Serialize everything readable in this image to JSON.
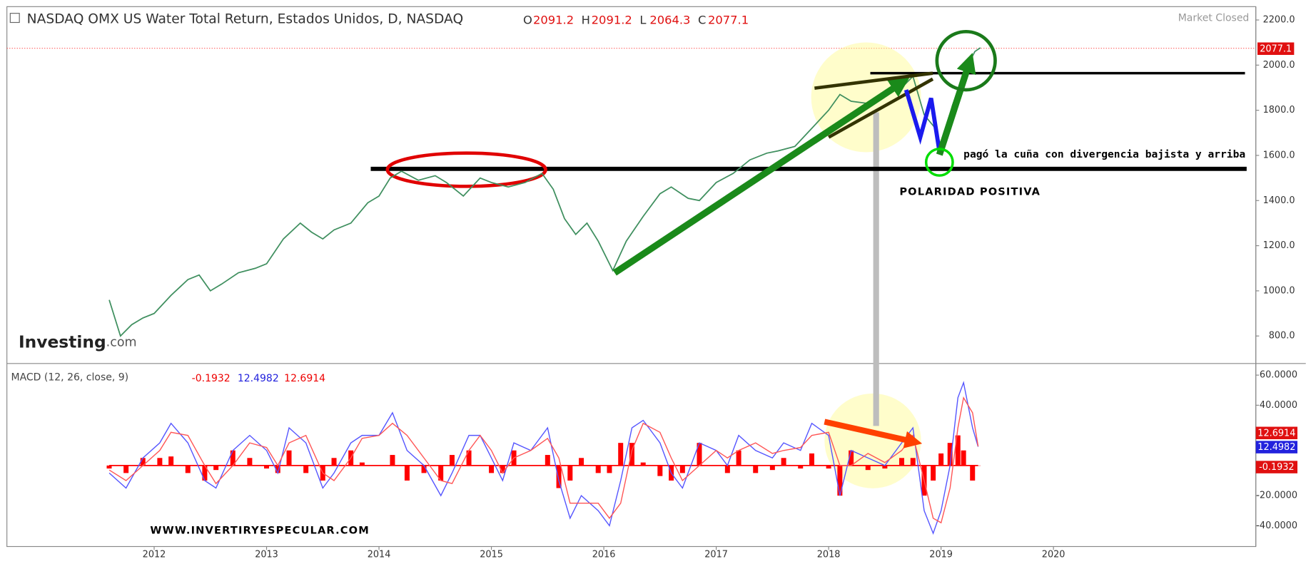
{
  "chart_data": {
    "type": "line",
    "title": "NASDAQ OMX US Water Total Return, Estados Unidos, D, NASDAQ",
    "ohlc": [
      {
        "label": "O",
        "value": 2091.2
      },
      {
        "label": "H",
        "value": 2091.2
      },
      {
        "label": "L",
        "value": 2064.3
      },
      {
        "label": "C",
        "value": 2077.1
      }
    ],
    "status": "Market Closed",
    "logo": {
      "main": "Investing",
      "suffix": ".com"
    },
    "watermark": "WWW.INVERTIRYESPECULAR.COM",
    "annotations": [
      "pagó la cuña con divergencia bajista y arriba",
      "POLARIDAD POSITIVA"
    ],
    "xlim": [
      2010.69,
      2021.8
    ],
    "xticks": [
      2012,
      2013,
      2014,
      2015,
      2016,
      2017,
      2018,
      2019,
      2020
    ],
    "ylim": [
      678,
      2259
    ],
    "yticks": [
      {
        "value": 800,
        "label": "800.0"
      },
      {
        "value": 1000,
        "label": "1000.0"
      },
      {
        "value": 1200,
        "label": "1200.0"
      },
      {
        "value": 1400,
        "label": "1400.0"
      },
      {
        "value": 1600,
        "label": "1600.0"
      },
      {
        "value": 1800,
        "label": "1800.0"
      },
      {
        "value": 2000,
        "label": "2000.0"
      },
      {
        "value": 2200,
        "label": "2200.0"
      }
    ],
    "x": [
      2011.6,
      2011.7,
      2011.8,
      2011.9,
      2012.0,
      2012.15,
      2012.3,
      2012.4,
      2012.5,
      2012.6,
      2012.75,
      2012.9,
      2013.0,
      2013.15,
      2013.3,
      2013.4,
      2013.5,
      2013.6,
      2013.75,
      2013.9,
      2014.0,
      2014.1,
      2014.2,
      2014.35,
      2014.5,
      2014.6,
      2014.75,
      2014.9,
      2015.0,
      2015.15,
      2015.3,
      2015.45,
      2015.55,
      2015.65,
      2015.75,
      2015.85,
      2015.95,
      2016.08,
      2016.2,
      2016.35,
      2016.5,
      2016.6,
      2016.75,
      2016.85,
      2017.0,
      2017.15,
      2017.3,
      2017.45,
      2017.55,
      2017.7,
      2017.85,
      2018.0,
      2018.1,
      2018.2,
      2018.35,
      2018.5,
      2018.65,
      2018.75,
      2018.85,
      2018.95,
      2019.0,
      2019.1,
      2019.2,
      2019.3,
      2019.35
    ],
    "series": [
      {
        "name": "Precio",
        "color": "#3f8f5f",
        "values": [
          960,
          800,
          850,
          880,
          900,
          980,
          1050,
          1070,
          1000,
          1030,
          1080,
          1100,
          1120,
          1230,
          1300,
          1260,
          1230,
          1270,
          1300,
          1390,
          1420,
          1500,
          1530,
          1490,
          1510,
          1480,
          1420,
          1500,
          1480,
          1460,
          1480,
          1520,
          1450,
          1320,
          1250,
          1300,
          1220,
          1090,
          1220,
          1330,
          1430,
          1460,
          1410,
          1400,
          1480,
          1520,
          1580,
          1610,
          1620,
          1640,
          1720,
          1800,
          1870,
          1840,
          1830,
          1870,
          1900,
          1950,
          1780,
          1720,
          1640,
          1820,
          1960,
          2060,
          2077.1
        ]
      }
    ],
    "macd": {
      "title": "MACD (12, 26, close, 9)",
      "legend": [
        -0.1932,
        12.4982,
        12.6914
      ],
      "ylim": [
        -53.8,
        67.7
      ],
      "yticks": [
        {
          "value": 60,
          "label": "60.0000"
        },
        {
          "value": 40,
          "label": "40.0000"
        },
        {
          "value": -20,
          "label": "-20.0000"
        },
        {
          "value": -40,
          "label": "-40.0000"
        }
      ],
      "x": [
        2011.6,
        2011.75,
        2011.9,
        2012.05,
        2012.15,
        2012.3,
        2012.45,
        2012.55,
        2012.7,
        2012.85,
        2013.0,
        2013.1,
        2013.2,
        2013.35,
        2013.5,
        2013.6,
        2013.75,
        2013.85,
        2014.0,
        2014.12,
        2014.25,
        2014.4,
        2014.55,
        2014.65,
        2014.8,
        2014.9,
        2015.0,
        2015.1,
        2015.2,
        2015.35,
        2015.5,
        2015.6,
        2015.7,
        2015.8,
        2015.95,
        2016.05,
        2016.15,
        2016.25,
        2016.35,
        2016.5,
        2016.6,
        2016.7,
        2016.85,
        2017.0,
        2017.1,
        2017.2,
        2017.35,
        2017.5,
        2017.6,
        2017.75,
        2017.85,
        2018.0,
        2018.1,
        2018.2,
        2018.35,
        2018.5,
        2018.65,
        2018.75,
        2018.85,
        2018.93,
        2019.0,
        2019.08,
        2019.15,
        2019.2,
        2019.28,
        2019.33
      ],
      "histogram": {
        "color": "#ff0000",
        "values": [
          -2,
          -5,
          5,
          5,
          6,
          -5,
          -10,
          -3,
          10,
          5,
          -2,
          -5,
          10,
          -5,
          -10,
          5,
          10,
          2,
          0,
          7,
          -10,
          -5,
          -10,
          7,
          10,
          0,
          -5,
          -5,
          10,
          0,
          7,
          -15,
          -10,
          5,
          -5,
          -5,
          15,
          15,
          2,
          -7,
          -10,
          -5,
          15,
          0,
          -5,
          10,
          -5,
          -3,
          5,
          -2,
          8,
          -2,
          -20,
          10,
          -3,
          -2,
          5,
          5,
          -20,
          -10,
          8,
          15,
          20,
          10,
          -10,
          -0.1932
        ]
      },
      "series": [
        {
          "color": "#5555ff",
          "values": [
            -5,
            -15,
            5,
            15,
            28,
            15,
            -10,
            -15,
            10,
            20,
            10,
            -5,
            25,
            15,
            -15,
            -5,
            15,
            20,
            20,
            35,
            10,
            0,
            -20,
            -5,
            20,
            20,
            5,
            -10,
            15,
            10,
            25,
            -10,
            -35,
            -20,
            -30,
            -40,
            -10,
            25,
            30,
            15,
            -5,
            -15,
            15,
            10,
            0,
            20,
            10,
            5,
            15,
            10,
            28,
            20,
            -20,
            10,
            5,
            0,
            15,
            25,
            -30,
            -45,
            -30,
            0,
            45,
            55,
            25,
            12.4982
          ]
        },
        {
          "color": "#ff5555",
          "values": [
            -3,
            -10,
            0,
            10,
            22,
            20,
            0,
            -12,
            0,
            15,
            12,
            0,
            15,
            20,
            -5,
            -10,
            5,
            18,
            20,
            28,
            20,
            5,
            -10,
            -12,
            10,
            20,
            10,
            -5,
            5,
            10,
            18,
            5,
            -25,
            -25,
            -25,
            -35,
            -25,
            10,
            28,
            22,
            5,
            -10,
            0,
            10,
            5,
            10,
            15,
            8,
            10,
            12,
            20,
            22,
            0,
            0,
            8,
            2,
            10,
            20,
            -10,
            -35,
            -38,
            -15,
            25,
            45,
            35,
            12.6914
          ]
        }
      ]
    }
  }
}
